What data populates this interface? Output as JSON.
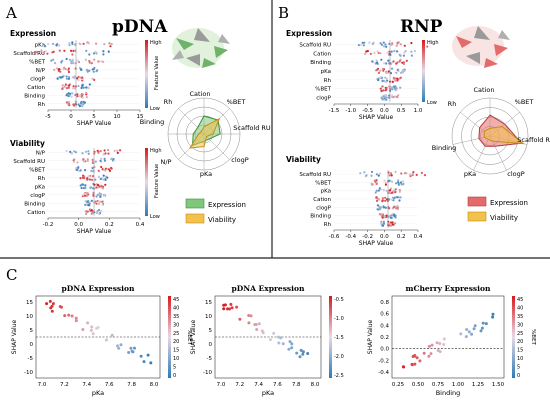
{
  "panels": {
    "A": {
      "letter": "A",
      "title": "pDNA",
      "expression": {
        "title": "Expression",
        "features": [
          "pKa",
          "Scaffold RU",
          "%BET",
          "N/P",
          "clogP",
          "Cation",
          "Binding",
          "Rh"
        ],
        "xticks": [
          "-5",
          "0",
          "5",
          "10",
          "15"
        ],
        "xlabel": "SHAP Value",
        "colorbar_high": "High",
        "colorbar_low": "Low",
        "colorbar_label": "Feature Value"
      },
      "viability": {
        "title": "Viability",
        "features": [
          "N/P",
          "Scaffold RU",
          "%BET",
          "Rh",
          "pKa",
          "clogP",
          "Binding",
          "Cation"
        ],
        "xticks": [
          "-0.2",
          "0.0",
          "0.2",
          "0.4"
        ],
        "xlabel": "SHAP Value",
        "colorbar_high": "High",
        "colorbar_low": "Low",
        "colorbar_label": "Feature Value"
      },
      "radar": {
        "axes": [
          "Cation",
          "%BET",
          "Scaffold RU",
          "clogP",
          "pKa",
          "N/P",
          "Binding",
          "Rh"
        ]
      },
      "legend": [
        {
          "label": "Expression",
          "color": "#7fc77a"
        },
        {
          "label": "Viability",
          "color": "#f2c14e"
        }
      ]
    },
    "B": {
      "letter": "B",
      "title": "RNP",
      "expression": {
        "title": "Expression",
        "features": [
          "Scaffold RU",
          "Cation",
          "Binding",
          "pKa",
          "Rh",
          "%BET",
          "clogP"
        ],
        "xticks": [
          "-1.5",
          "-1.0",
          "-0.5",
          "0.0",
          "0.5",
          "1.0"
        ],
        "xlabel": "SHAP Value",
        "colorbar_high": "High",
        "colorbar_low": "Low",
        "colorbar_label": "Feature Value"
      },
      "viability": {
        "title": "Viability",
        "features": [
          "Scaffold RU",
          "%BET",
          "pKa",
          "Cation",
          "clogP",
          "Binding",
          "Rh"
        ],
        "xticks": [
          "-0.6",
          "-0.4",
          "-0.2",
          "0.0",
          "0.2",
          "0.4"
        ],
        "xlabel": "SHAP Value",
        "colorbar_high": "High",
        "colorbar_low": "Low",
        "colorbar_label": "Feature Value"
      },
      "radar": {
        "axes": [
          "Cation",
          "%BET",
          "Scaffold RU",
          "clogP",
          "pKa",
          "Binding",
          "Rh"
        ]
      },
      "legend": [
        {
          "label": "Expression",
          "color": "#e36b6b"
        },
        {
          "label": "Viability",
          "color": "#f2c14e"
        }
      ]
    },
    "C": {
      "letter": "C",
      "plots": [
        {
          "title": "pDNA Expression",
          "ylabel": "SHAP Value",
          "xlabel": "pKa",
          "yticks": [
            "15",
            "10",
            "5",
            "0",
            "-5",
            "-10"
          ],
          "xticks": [
            "7.0",
            "7.2",
            "7.4",
            "7.6",
            "7.8",
            "8.0"
          ],
          "cbar_label": "%BET",
          "cbar_ticks": [
            "45",
            "40",
            "35",
            "30",
            "25",
            "20",
            "15",
            "10",
            "5",
            "0"
          ]
        },
        {
          "title": "pDNA Expression",
          "ylabel": "SHAP Value",
          "xlabel": "pKa",
          "yticks": [
            "15",
            "10",
            "5",
            "0",
            "-5",
            "-10"
          ],
          "xticks": [
            "7.0",
            "7.2",
            "7.4",
            "7.6",
            "7.8",
            "8.0"
          ],
          "cbar_label": "",
          "cbar_ticks": [
            "-0.5",
            "-1.0",
            "-1.5",
            "-2.0",
            "-2.5"
          ]
        },
        {
          "title": "mCherry Expression",
          "ylabel": "SHAP Value",
          "xlabel": "Binding",
          "yticks": [
            "0.8",
            "0.6",
            "0.4",
            "0.2",
            "0.0",
            "-0.2",
            "-0.4"
          ],
          "xticks": [
            "0.25",
            "0.50",
            "0.75",
            "1.00",
            "1.25",
            "1.50"
          ],
          "cbar_label": "%BET",
          "cbar_ticks": [
            "45",
            "40",
            "35",
            "30",
            "25",
            "20",
            "15",
            "10",
            "5",
            "0"
          ]
        }
      ]
    }
  },
  "colors": {
    "high": "#d7191c",
    "low": "#2c7bb6",
    "mid": "#d9d9d9",
    "divider": "#222222"
  }
}
